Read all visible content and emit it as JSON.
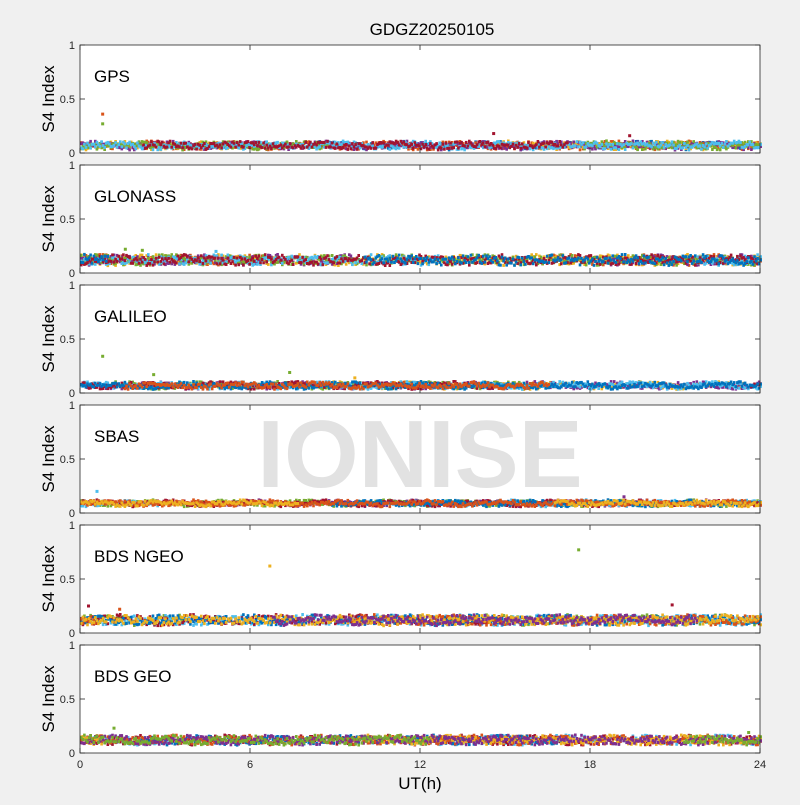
{
  "figure_title": "GDGZ20250105",
  "watermark": "IONISE",
  "colors": {
    "figure_bg": "#f0f0f0",
    "axes_bg": "#ffffff",
    "axis_line": "#262626",
    "text": "#000000",
    "watermark": "#d9d9d9",
    "series_palette": [
      "#0072BD",
      "#D95319",
      "#EDB120",
      "#7E2F8E",
      "#77AC30",
      "#4DBEEE",
      "#A2142F"
    ]
  },
  "chart_data": [
    {
      "type": "scatter",
      "panel_label": "GPS",
      "ylabel": "S4 Index",
      "xlim": [
        0,
        24
      ],
      "ylim": [
        0,
        1
      ],
      "xticks": [
        0,
        6,
        12,
        18,
        24
      ],
      "yticks": [
        0,
        0.5,
        1
      ],
      "baseline_s4": 0.07,
      "noise_s4": 0.03,
      "outliers": [
        {
          "x": 0.8,
          "y": 0.36,
          "color": "#D95319"
        },
        {
          "x": 0.8,
          "y": 0.27,
          "color": "#77AC30"
        },
        {
          "x": 14.6,
          "y": 0.18,
          "color": "#A2142F"
        },
        {
          "x": 19.4,
          "y": 0.16,
          "color": "#A2142F"
        }
      ]
    },
    {
      "type": "scatter",
      "panel_label": "GLONASS",
      "ylabel": "S4 Index",
      "xlim": [
        0,
        24
      ],
      "ylim": [
        0,
        1
      ],
      "xticks": [
        0,
        6,
        12,
        18,
        24
      ],
      "yticks": [
        0,
        0.5,
        1
      ],
      "baseline_s4": 0.12,
      "noise_s4": 0.04,
      "outliers": [
        {
          "x": 1.6,
          "y": 0.22,
          "color": "#77AC30"
        },
        {
          "x": 2.2,
          "y": 0.21,
          "color": "#77AC30"
        },
        {
          "x": 4.8,
          "y": 0.2,
          "color": "#4DBEEE"
        }
      ]
    },
    {
      "type": "scatter",
      "panel_label": "GALILEO",
      "ylabel": "S4 Index",
      "xlim": [
        0,
        24
      ],
      "ylim": [
        0,
        1
      ],
      "xticks": [
        0,
        6,
        12,
        18,
        24
      ],
      "yticks": [
        0,
        0.5,
        1
      ],
      "baseline_s4": 0.07,
      "noise_s4": 0.025,
      "outliers": [
        {
          "x": 0.8,
          "y": 0.34,
          "color": "#77AC30"
        },
        {
          "x": 2.6,
          "y": 0.17,
          "color": "#77AC30"
        },
        {
          "x": 7.4,
          "y": 0.19,
          "color": "#77AC30"
        },
        {
          "x": 9.7,
          "y": 0.14,
          "color": "#EDB120"
        }
      ]
    },
    {
      "type": "scatter",
      "panel_label": "SBAS",
      "ylabel": "S4 Index",
      "xlim": [
        0,
        24
      ],
      "ylim": [
        0,
        1
      ],
      "xticks": [
        0,
        6,
        12,
        18,
        24
      ],
      "yticks": [
        0,
        0.5,
        1
      ],
      "baseline_s4": 0.09,
      "noise_s4": 0.02,
      "outliers": [
        {
          "x": 0.6,
          "y": 0.2,
          "color": "#4DBEEE"
        },
        {
          "x": 19.2,
          "y": 0.15,
          "color": "#7E2F8E"
        }
      ]
    },
    {
      "type": "scatter",
      "panel_label": "BDS NGEO",
      "ylabel": "S4 Index",
      "xlim": [
        0,
        24
      ],
      "ylim": [
        0,
        1
      ],
      "xticks": [
        0,
        6,
        12,
        18,
        24
      ],
      "yticks": [
        0,
        0.5,
        1
      ],
      "baseline_s4": 0.12,
      "noise_s4": 0.04,
      "outliers": [
        {
          "x": 0.3,
          "y": 0.25,
          "color": "#A2142F"
        },
        {
          "x": 6.7,
          "y": 0.62,
          "color": "#EDB120"
        },
        {
          "x": 17.6,
          "y": 0.77,
          "color": "#77AC30"
        },
        {
          "x": 20.9,
          "y": 0.26,
          "color": "#A2142F"
        },
        {
          "x": 1.4,
          "y": 0.22,
          "color": "#D95319"
        }
      ]
    },
    {
      "type": "scatter",
      "panel_label": "BDS GEO",
      "ylabel": "S4 Index",
      "xlabel": "UT(h)",
      "xlim": [
        0,
        24
      ],
      "ylim": [
        0,
        1
      ],
      "xticks": [
        0,
        6,
        12,
        18,
        24
      ],
      "yticks": [
        0,
        0.5,
        1
      ],
      "baseline_s4": 0.12,
      "noise_s4": 0.035,
      "outliers": [
        {
          "x": 1.2,
          "y": 0.23,
          "color": "#77AC30"
        },
        {
          "x": 23.6,
          "y": 0.19,
          "color": "#77AC30"
        }
      ]
    }
  ]
}
